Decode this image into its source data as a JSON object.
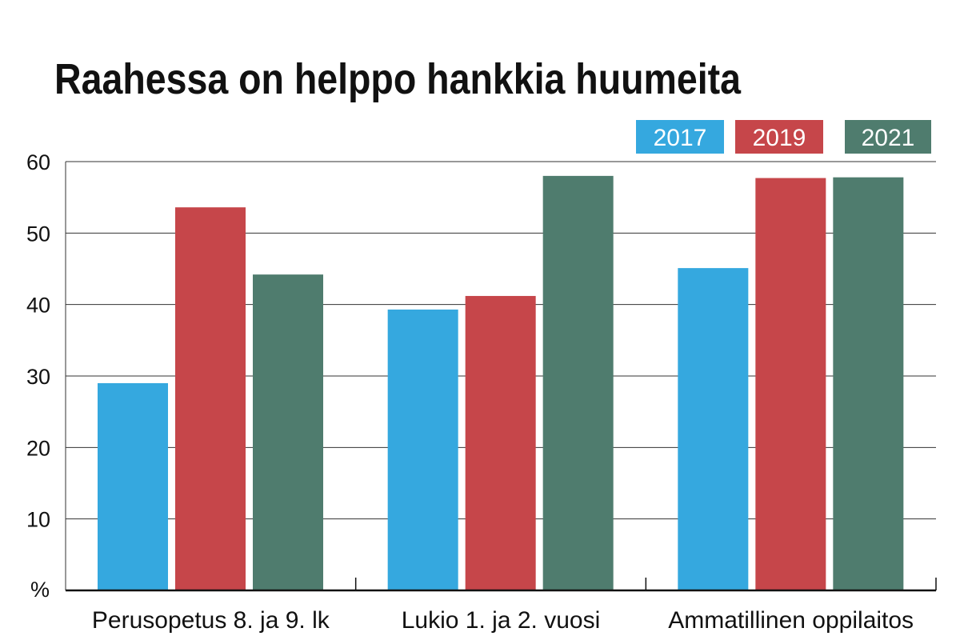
{
  "chart_data": {
    "type": "bar",
    "title": "Raahessa on helppo hankkia huumeita",
    "ylabel": "%",
    "ylim": [
      0,
      60
    ],
    "yticks": [
      10,
      20,
      30,
      40,
      50,
      60
    ],
    "categories": [
      "Perusopetus 8. ja 9. lk",
      "Lukio 1. ja 2. vuosi",
      "Ammatillinen oppilaitos"
    ],
    "series": [
      {
        "name": "2017",
        "color": "#35a8df",
        "values": [
          29,
          39.3,
          45.1
        ]
      },
      {
        "name": "2019",
        "color": "#c6464a",
        "values": [
          53.6,
          41.2,
          57.7
        ]
      },
      {
        "name": "2021",
        "color": "#4f7c6e",
        "values": [
          44.2,
          58,
          57.8
        ]
      }
    ],
    "legend_position": "top-right",
    "grid": true
  }
}
